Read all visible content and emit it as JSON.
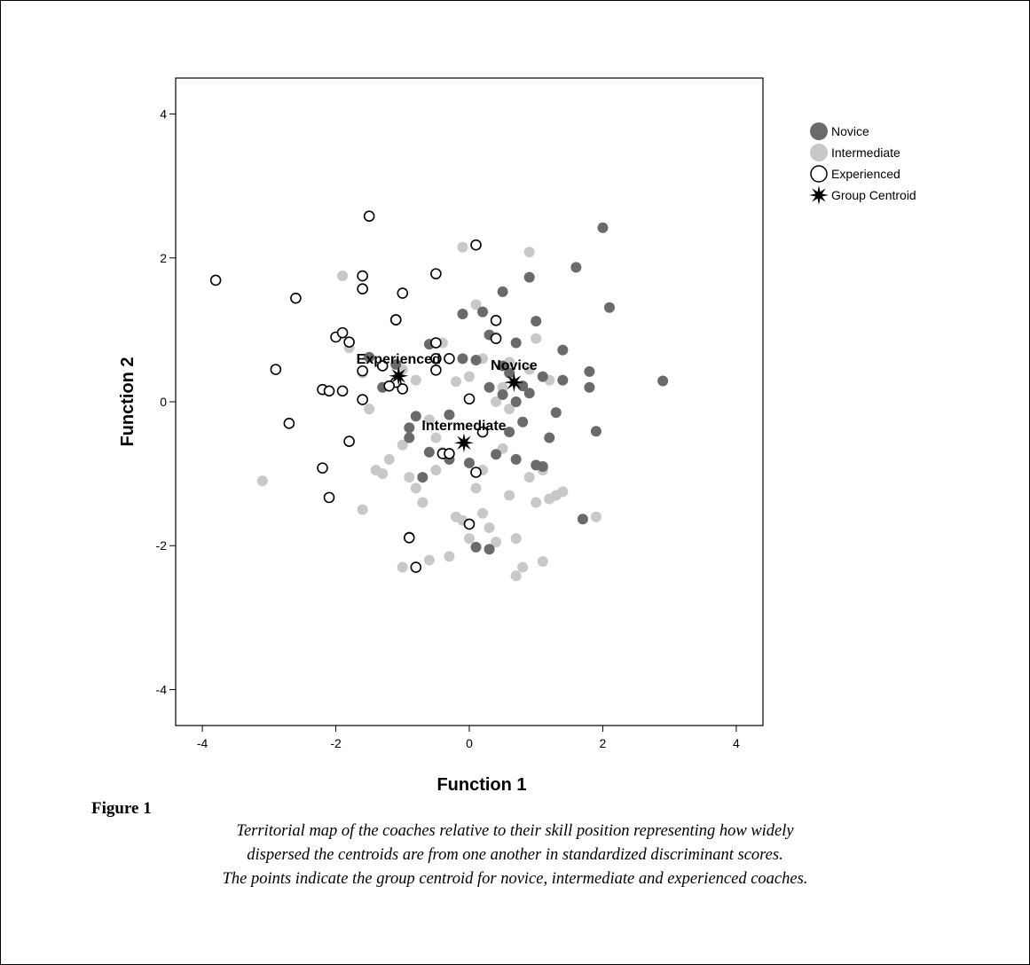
{
  "chart_data": {
    "type": "scatter",
    "xlabel": "Function 1",
    "ylabel": "Function 2",
    "xlim": [
      -4.4,
      4.4
    ],
    "ylim": [
      -4.5,
      4.5
    ],
    "xticks": [
      -4,
      -2,
      0,
      2,
      4
    ],
    "yticks": [
      -4,
      -2,
      0,
      2,
      4
    ],
    "grid": false,
    "legend_position": "top-right",
    "series": [
      {
        "name": "Novice",
        "color": "#6a6a6a",
        "marker": "filled-circle",
        "points": [
          [
            2.0,
            2.42
          ],
          [
            2.1,
            1.31
          ],
          [
            1.6,
            1.87
          ],
          [
            0.9,
            1.73
          ],
          [
            0.5,
            1.53
          ],
          [
            1.0,
            1.12
          ],
          [
            0.2,
            1.25
          ],
          [
            -0.1,
            1.22
          ],
          [
            0.3,
            0.93
          ],
          [
            0.7,
            0.82
          ],
          [
            1.4,
            0.72
          ],
          [
            1.8,
            0.42
          ],
          [
            1.8,
            0.2
          ],
          [
            2.9,
            0.29
          ],
          [
            0.6,
            0.4
          ],
          [
            0.8,
            0.22
          ],
          [
            1.1,
            0.35
          ],
          [
            0.9,
            0.12
          ],
          [
            0.5,
            0.1
          ],
          [
            0.3,
            0.2
          ],
          [
            -0.1,
            0.6
          ],
          [
            0.1,
            0.58
          ],
          [
            1.3,
            -0.15
          ],
          [
            0.8,
            -0.28
          ],
          [
            1.2,
            -0.5
          ],
          [
            1.9,
            -0.41
          ],
          [
            0.6,
            -0.42
          ],
          [
            0.4,
            -0.73
          ],
          [
            0.7,
            -0.8
          ],
          [
            1.0,
            -0.88
          ],
          [
            1.1,
            -0.9
          ],
          [
            0.0,
            -0.85
          ],
          [
            -0.3,
            -0.8
          ],
          [
            -0.6,
            -0.7
          ],
          [
            -0.7,
            -1.05
          ],
          [
            -0.9,
            -0.5
          ],
          [
            -0.8,
            -0.2
          ],
          [
            -0.3,
            -0.18
          ],
          [
            -1.1,
            0.52
          ],
          [
            -1.3,
            0.2
          ],
          [
            -1.5,
            0.62
          ],
          [
            1.7,
            -1.63
          ],
          [
            0.1,
            -2.02
          ],
          [
            0.3,
            -2.05
          ],
          [
            -0.9,
            -1.88
          ],
          [
            0.7,
            0.0
          ],
          [
            1.4,
            0.3
          ],
          [
            0.5,
            0.5
          ],
          [
            -0.6,
            0.8
          ],
          [
            -0.9,
            -0.36
          ]
        ]
      },
      {
        "name": "Intermediate",
        "color": "#c8c8c8",
        "marker": "filled-circle",
        "points": [
          [
            -3.1,
            -1.1
          ],
          [
            -1.9,
            1.75
          ],
          [
            -1.6,
            -1.5
          ],
          [
            -1.5,
            -0.1
          ],
          [
            -1.4,
            -0.95
          ],
          [
            -1.3,
            -1.0
          ],
          [
            -1.2,
            -0.8
          ],
          [
            -1.0,
            -0.6
          ],
          [
            -0.9,
            -1.05
          ],
          [
            -0.8,
            -1.2
          ],
          [
            -0.7,
            -1.4
          ],
          [
            -0.6,
            -2.2
          ],
          [
            -0.5,
            -0.95
          ],
          [
            -0.4,
            -0.7
          ],
          [
            -0.3,
            -2.15
          ],
          [
            -0.2,
            -1.6
          ],
          [
            -0.1,
            -1.65
          ],
          [
            0.0,
            -1.9
          ],
          [
            0.1,
            -1.2
          ],
          [
            0.2,
            -1.55
          ],
          [
            0.3,
            -1.75
          ],
          [
            0.4,
            -1.95
          ],
          [
            0.5,
            -0.65
          ],
          [
            0.6,
            -1.3
          ],
          [
            0.7,
            -1.9
          ],
          [
            0.7,
            -2.42
          ],
          [
            0.8,
            -2.3
          ],
          [
            0.9,
            -1.05
          ],
          [
            1.0,
            -1.4
          ],
          [
            1.1,
            -2.22
          ],
          [
            1.2,
            -1.35
          ],
          [
            1.3,
            -1.3
          ],
          [
            1.4,
            -1.25
          ],
          [
            1.9,
            -1.6
          ],
          [
            1.2,
            0.3
          ],
          [
            1.0,
            0.88
          ],
          [
            0.9,
            0.45
          ],
          [
            0.6,
            0.55
          ],
          [
            0.4,
            0.9
          ],
          [
            0.2,
            0.6
          ],
          [
            0.0,
            0.35
          ],
          [
            -0.2,
            0.28
          ],
          [
            -0.6,
            -0.25
          ],
          [
            -0.8,
            0.3
          ],
          [
            -1.0,
            0.45
          ],
          [
            -1.3,
            0.5
          ],
          [
            -1.6,
            0.4
          ],
          [
            -1.8,
            0.75
          ],
          [
            -0.1,
            2.15
          ],
          [
            0.9,
            2.08
          ],
          [
            0.1,
            1.35
          ],
          [
            -0.4,
            0.82
          ],
          [
            0.5,
            0.2
          ],
          [
            -0.5,
            -0.5
          ],
          [
            0.2,
            -0.95
          ],
          [
            1.1,
            -0.95
          ],
          [
            0.6,
            -0.1
          ],
          [
            -1.0,
            -2.3
          ],
          [
            0.4,
            0.0
          ]
        ]
      },
      {
        "name": "Experienced",
        "color": "#000000",
        "marker": "open-circle",
        "points": [
          [
            -3.8,
            1.69
          ],
          [
            -2.9,
            0.45
          ],
          [
            -2.6,
            1.44
          ],
          [
            -2.7,
            -0.3
          ],
          [
            -2.2,
            0.17
          ],
          [
            -2.1,
            0.15
          ],
          [
            -2.2,
            -0.92
          ],
          [
            -2.1,
            -1.33
          ],
          [
            -2.0,
            0.9
          ],
          [
            -1.9,
            0.96
          ],
          [
            -1.8,
            0.83
          ],
          [
            -1.9,
            0.15
          ],
          [
            -1.8,
            -0.55
          ],
          [
            -1.6,
            1.57
          ],
          [
            -1.6,
            1.75
          ],
          [
            -1.6,
            0.43
          ],
          [
            -1.6,
            0.03
          ],
          [
            -1.5,
            2.58
          ],
          [
            -1.3,
            0.5
          ],
          [
            -1.1,
            1.14
          ],
          [
            -1.1,
            1.14
          ],
          [
            -1.0,
            1.51
          ],
          [
            -1.0,
            0.18
          ],
          [
            -1.1,
            0.27
          ],
          [
            -0.9,
            -1.89
          ],
          [
            -0.8,
            -2.3
          ],
          [
            -0.5,
            0.82
          ],
          [
            -0.5,
            0.6
          ],
          [
            -0.5,
            0.44
          ],
          [
            -0.5,
            1.78
          ],
          [
            -0.4,
            -0.72
          ],
          [
            -0.3,
            -0.72
          ],
          [
            0.1,
            2.18
          ],
          [
            0.4,
            1.13
          ],
          [
            0.4,
            0.88
          ],
          [
            0.0,
            0.04
          ],
          [
            0.2,
            -0.42
          ],
          [
            0.1,
            -0.98
          ],
          [
            0.0,
            -1.7
          ],
          [
            -1.2,
            0.22
          ],
          [
            -0.3,
            0.6
          ]
        ]
      },
      {
        "name": "Group Centroid",
        "color": "#000000",
        "marker": "star",
        "points": [
          [
            -1.06,
            0.36
          ],
          [
            0.67,
            0.27
          ],
          [
            -0.08,
            -0.57
          ]
        ]
      }
    ],
    "centroid_labels": [
      {
        "text": "Experienced",
        "x": -1.06,
        "y": 0.36
      },
      {
        "text": "Novice",
        "x": 0.67,
        "y": 0.27
      },
      {
        "text": "Intermediate",
        "x": -0.08,
        "y": -0.57
      }
    ]
  },
  "caption": {
    "figure_label": "Figure 1",
    "lines": [
      "Territorial map of the coaches relative to their skill position representing how widely",
      "dispersed the centroids are from one another in standardized discriminant scores.",
      "The points indicate the group centroid for novice, intermediate and experienced coaches."
    ]
  }
}
